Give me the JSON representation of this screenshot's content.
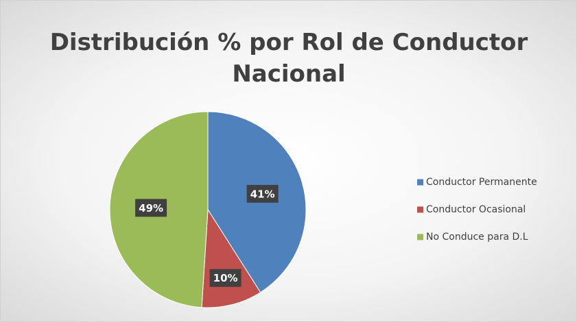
{
  "chart_data": {
    "type": "pie",
    "title": "Distribución % por Rol de Conductor Nacional",
    "categories": [
      "Conductor Permanente",
      "Conductor Ocasional",
      "No Conduce para D.L"
    ],
    "values": [
      41,
      10,
      49
    ],
    "value_labels": [
      "41%",
      "10%",
      "49%"
    ],
    "colors": [
      "#4f81bd",
      "#c0504d",
      "#9bbb59"
    ],
    "legend": "right"
  }
}
